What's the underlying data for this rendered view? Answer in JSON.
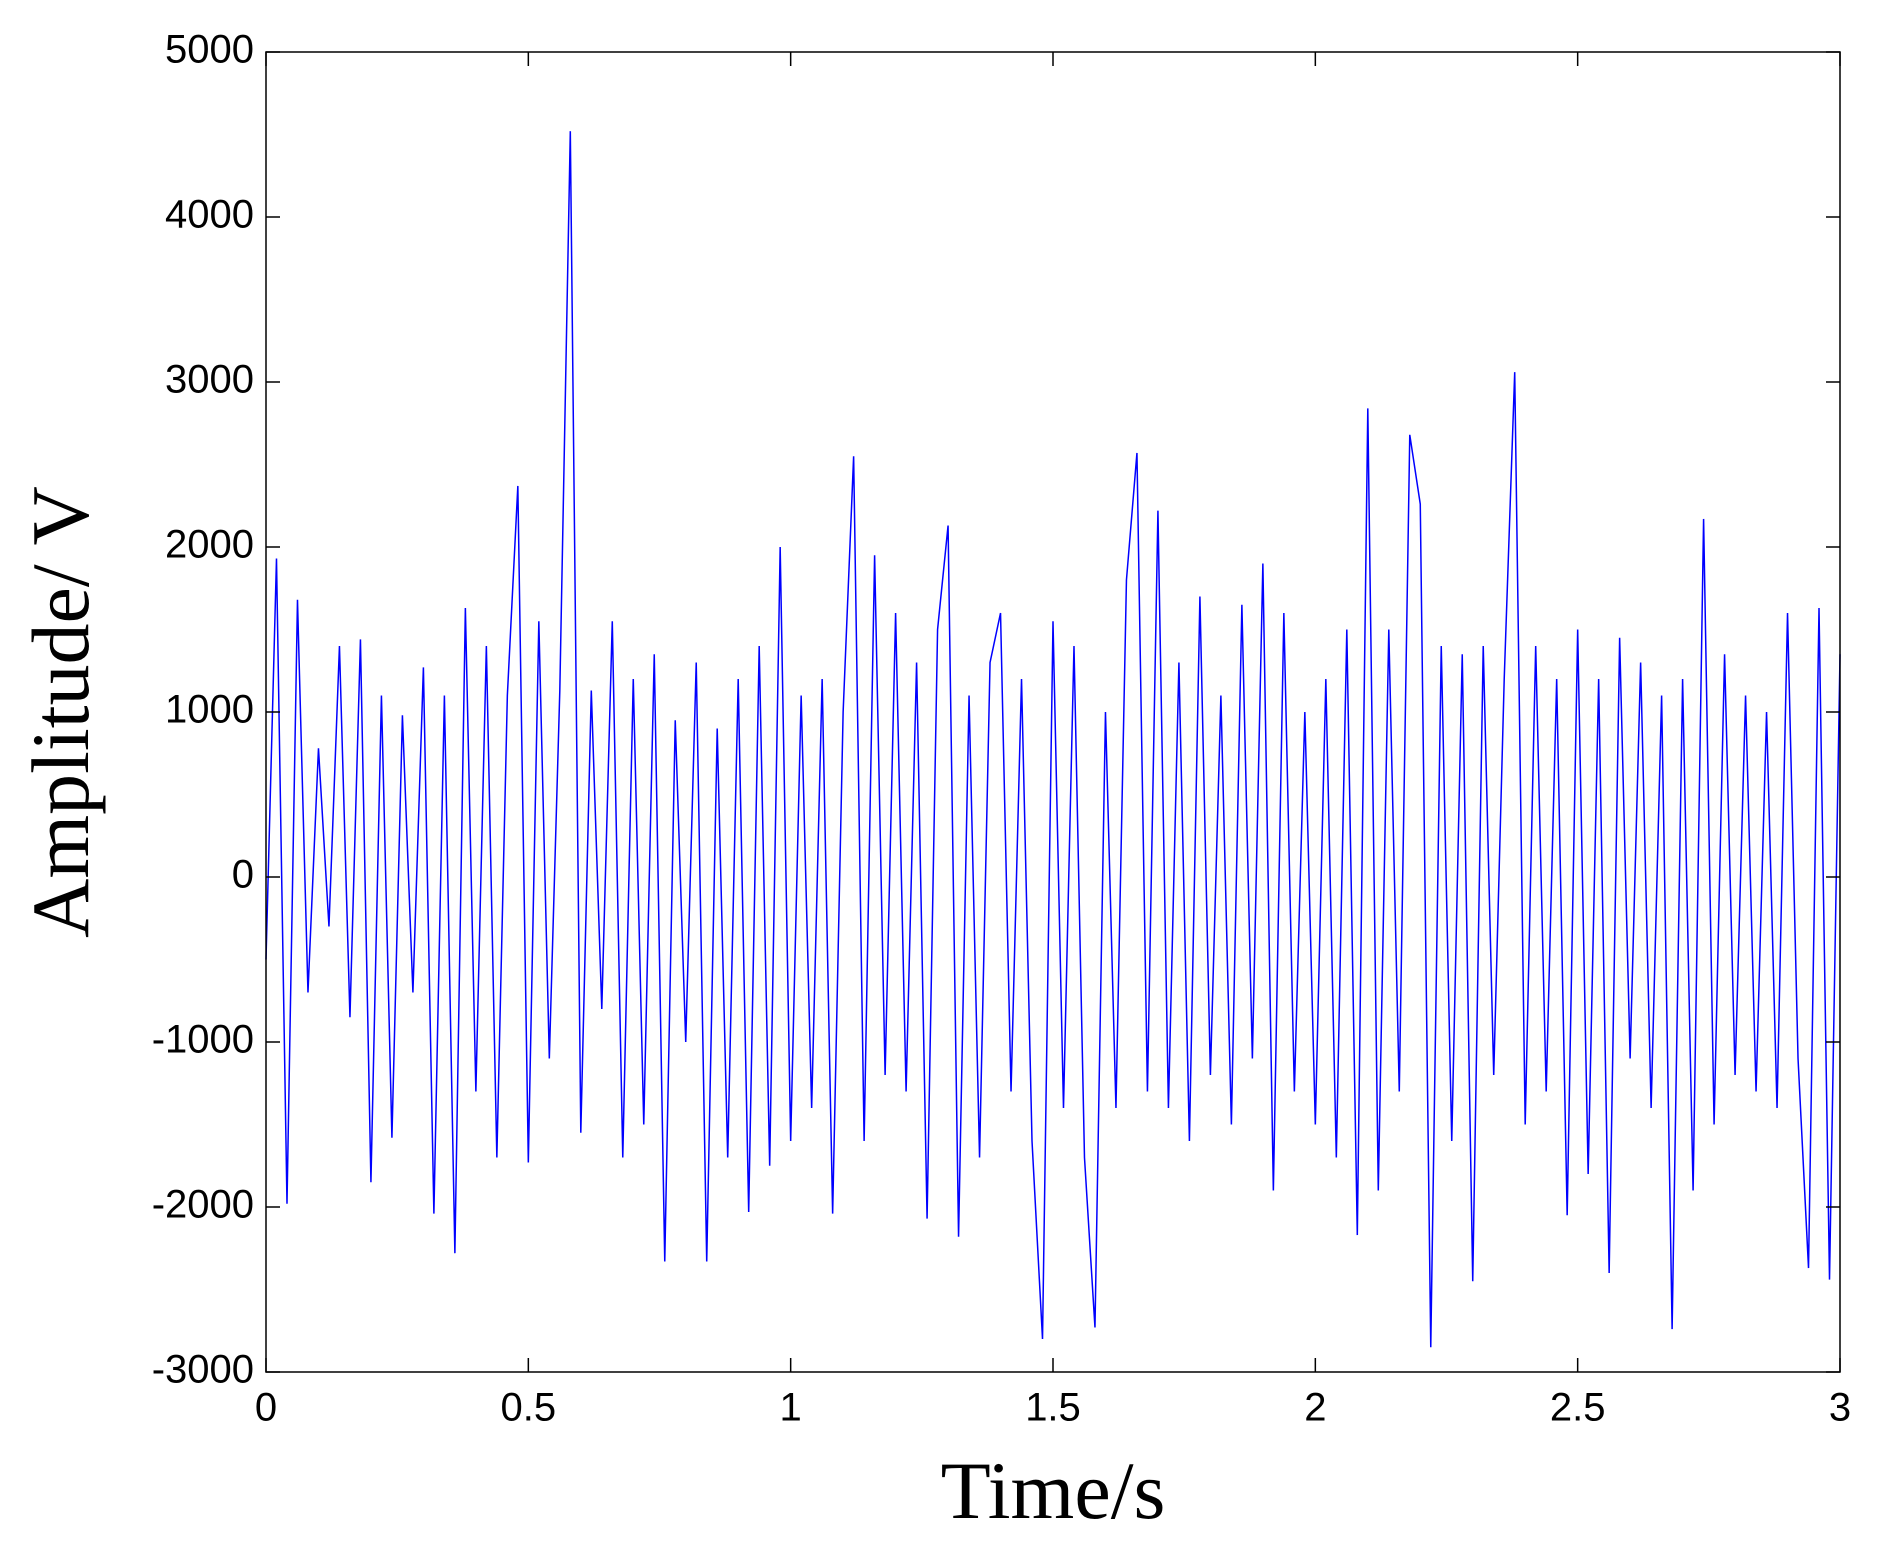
{
  "chart_data": {
    "type": "line",
    "x_label": "Time/s",
    "y_label": "Amplitude/ V",
    "color": "#0000ff",
    "xlim": [
      0,
      3
    ],
    "ylim": [
      -3000,
      5000
    ],
    "xticks": [
      0,
      0.5,
      1,
      1.5,
      2,
      2.5,
      3
    ],
    "yticks": [
      -3000,
      -2000,
      -1000,
      0,
      1000,
      2000,
      3000,
      4000,
      5000
    ],
    "grid": false,
    "x": [
      0,
      0.02,
      0.04,
      0.06,
      0.08,
      0.1,
      0.12,
      0.14,
      0.16,
      0.18,
      0.2,
      0.22,
      0.24,
      0.26,
      0.28,
      0.3,
      0.32,
      0.34,
      0.36,
      0.38,
      0.4,
      0.42,
      0.44,
      0.46,
      0.48,
      0.5,
      0.52,
      0.54,
      0.56,
      0.58,
      0.6,
      0.62,
      0.64,
      0.66,
      0.68,
      0.7,
      0.72,
      0.74,
      0.76,
      0.78,
      0.8,
      0.82,
      0.84,
      0.86,
      0.88,
      0.9,
      0.92,
      0.94,
      0.96,
      0.98,
      1,
      1.02,
      1.04,
      1.06,
      1.08,
      1.1,
      1.12,
      1.14,
      1.16,
      1.18,
      1.2,
      1.22,
      1.24,
      1.26,
      1.28,
      1.3,
      1.32,
      1.34,
      1.36,
      1.38,
      1.4,
      1.42,
      1.44,
      1.46,
      1.48,
      1.5,
      1.52,
      1.54,
      1.56,
      1.58,
      1.6,
      1.62,
      1.64,
      1.66,
      1.68,
      1.7,
      1.72,
      1.74,
      1.76,
      1.78,
      1.8,
      1.82,
      1.84,
      1.86,
      1.88,
      1.9,
      1.92,
      1.94,
      1.96,
      1.98,
      2,
      2.02,
      2.04,
      2.06,
      2.08,
      2.1,
      2.12,
      2.14,
      2.16,
      2.18,
      2.2,
      2.22,
      2.24,
      2.26,
      2.28,
      2.3,
      2.32,
      2.34,
      2.36,
      2.38,
      2.4,
      2.42,
      2.44,
      2.46,
      2.48,
      2.5,
      2.52,
      2.54,
      2.56,
      2.58,
      2.6,
      2.62,
      2.64,
      2.66,
      2.68,
      2.7,
      2.72,
      2.74,
      2.76,
      2.78,
      2.8,
      2.82,
      2.84,
      2.86,
      2.88,
      2.9,
      2.92,
      2.94,
      2.96,
      2.98,
      3
    ],
    "values": [
      -500,
      1930,
      -1980,
      1680,
      -700,
      780,
      -300,
      1400,
      -850,
      1440,
      -1850,
      1100,
      -1580,
      980,
      -700,
      1270,
      -2040,
      1100,
      -2280,
      1630,
      -1300,
      1400,
      -1700,
      1100,
      2370,
      -1730,
      1550,
      -1100,
      1130,
      4520,
      -1550,
      1130,
      -800,
      1550,
      -1700,
      1200,
      -1500,
      1350,
      -2330,
      950,
      -1000,
      1300,
      -2330,
      900,
      -1700,
      1200,
      -2030,
      1400,
      -1750,
      2000,
      -1600,
      1100,
      -1400,
      1200,
      -2040,
      1000,
      2550,
      -1600,
      1950,
      -1200,
      1600,
      -1300,
      1300,
      -2070,
      1500,
      2130,
      -2180,
      1100,
      -1700,
      1300,
      1600,
      -1300,
      1200,
      -1600,
      -2800,
      1550,
      -1400,
      1400,
      -1700,
      -2730,
      1000,
      -1400,
      1800,
      2570,
      -1300,
      2220,
      -1400,
      1300,
      -1600,
      1700,
      -1200,
      1100,
      -1500,
      1650,
      -1100,
      1900,
      -1900,
      1600,
      -1300,
      1000,
      -1500,
      1200,
      -1700,
      1500,
      -2170,
      2840,
      -1900,
      1500,
      -1300,
      2680,
      2260,
      -2850,
      1400,
      -1600,
      1350,
      -2450,
      1400,
      -1200,
      1200,
      3060,
      -1500,
      1400,
      -1300,
      1200,
      -2050,
      1500,
      -1800,
      1200,
      -2400,
      1450,
      -1100,
      1300,
      -1400,
      1100,
      -2740,
      1200,
      -1900,
      2170,
      -1500,
      1350,
      -1200,
      1100,
      -1300,
      1000,
      -1400,
      1600,
      -1100,
      -2370,
      1630,
      -2440,
      1350
    ]
  }
}
